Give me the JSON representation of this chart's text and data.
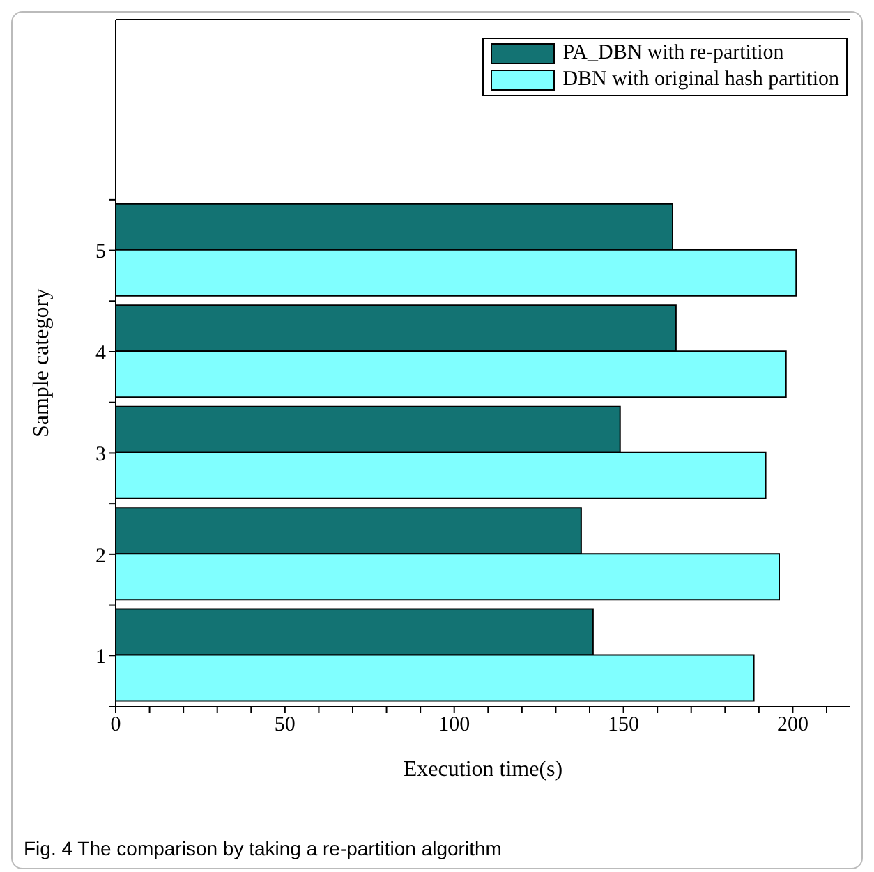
{
  "chart_data": {
    "type": "bar",
    "orientation": "horizontal",
    "xlabel": "Execution time(s)",
    "ylabel": "Sample category",
    "categories": [
      "5",
      "4",
      "3",
      "2",
      "1"
    ],
    "series": [
      {
        "name": "PA_DBN with re-partition",
        "color": "#137373",
        "values": [
          164.5,
          165.5,
          149,
          137.5,
          141
        ]
      },
      {
        "name": "DBN with original hash partition",
        "color": "#80ffff",
        "values": [
          201,
          198,
          192,
          196,
          188.5
        ]
      }
    ],
    "xlim": [
      0,
      217
    ],
    "xticks": [
      0,
      {
        "value": 10,
        "label": null
      },
      {
        "value": 20,
        "label": null
      },
      {
        "value": 30,
        "label": null
      },
      {
        "value": 40,
        "label": null
      },
      50,
      {
        "value": 60,
        "label": null
      },
      {
        "value": 70,
        "label": null
      },
      {
        "value": 80,
        "label": null
      },
      {
        "value": 90,
        "label": null
      },
      100,
      {
        "value": 110,
        "label": null
      },
      {
        "value": 120,
        "label": null
      },
      {
        "value": 130,
        "label": null
      },
      {
        "value": 140,
        "label": null
      },
      150,
      {
        "value": 160,
        "label": null
      },
      {
        "value": 170,
        "label": null
      },
      {
        "value": 180,
        "label": null
      },
      {
        "value": 190,
        "label": null
      },
      200,
      {
        "value": 210,
        "label": null
      }
    ],
    "legend": "top right",
    "annotations": [
      "Fig. 4 The comparison by taking a re-partition algorithm"
    ]
  }
}
